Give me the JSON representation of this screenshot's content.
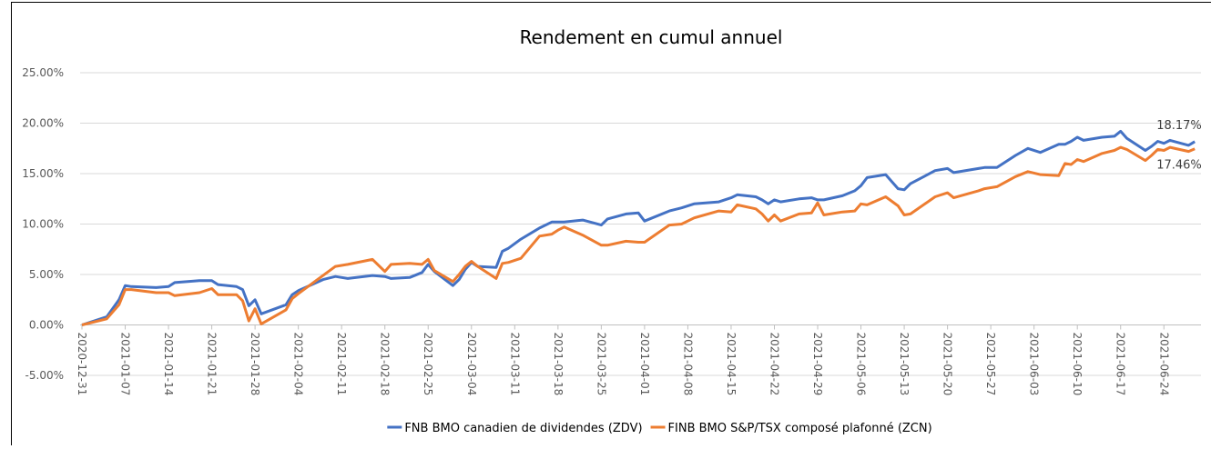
{
  "chart_data": {
    "type": "line",
    "title": "Rendement en cumul annuel",
    "x": [
      "2020-12-31",
      "2021-01-04",
      "2021-01-06",
      "2021-01-07",
      "2021-01-08",
      "2021-01-12",
      "2021-01-14",
      "2021-01-15",
      "2021-01-19",
      "2021-01-21",
      "2021-01-22",
      "2021-01-25",
      "2021-01-26",
      "2021-01-27",
      "2021-01-28",
      "2021-01-29",
      "2021-02-02",
      "2021-02-03",
      "2021-02-04",
      "2021-02-08",
      "2021-02-10",
      "2021-02-12",
      "2021-02-16",
      "2021-02-18",
      "2021-02-19",
      "2021-02-22",
      "2021-02-24",
      "2021-02-25",
      "2021-02-26",
      "2021-03-01",
      "2021-03-02",
      "2021-03-03",
      "2021-03-04",
      "2021-03-05",
      "2021-03-08",
      "2021-03-09",
      "2021-03-10",
      "2021-03-12",
      "2021-03-15",
      "2021-03-17",
      "2021-03-18",
      "2021-03-19",
      "2021-03-22",
      "2021-03-25",
      "2021-03-26",
      "2021-03-29",
      "2021-03-31",
      "2021-04-01",
      "2021-04-05",
      "2021-04-07",
      "2021-04-09",
      "2021-04-13",
      "2021-04-15",
      "2021-04-16",
      "2021-04-19",
      "2021-04-20",
      "2021-04-21",
      "2021-04-22",
      "2021-04-23",
      "2021-04-26",
      "2021-04-28",
      "2021-04-29",
      "2021-04-30",
      "2021-05-03",
      "2021-05-05",
      "2021-05-06",
      "2021-05-07",
      "2021-05-10",
      "2021-05-12",
      "2021-05-13",
      "2021-05-14",
      "2021-05-18",
      "2021-05-20",
      "2021-05-21",
      "2021-05-25",
      "2021-05-26",
      "2021-05-28",
      "2021-05-31",
      "2021-06-02",
      "2021-06-04",
      "2021-06-07",
      "2021-06-08",
      "2021-06-09",
      "2021-06-10",
      "2021-06-11",
      "2021-06-14",
      "2021-06-16",
      "2021-06-17",
      "2021-06-18",
      "2021-06-21",
      "2021-06-22",
      "2021-06-23",
      "2021-06-24",
      "2021-06-25",
      "2021-06-28",
      "2021-06-29"
    ],
    "series": [
      {
        "name": "FNB BMO canadien de dividendes (ZDV)",
        "color": "#4472c4",
        "values": [
          0,
          0.8,
          2.5,
          3.9,
          3.8,
          3.7,
          3.8,
          4.2,
          4.4,
          4.4,
          4.0,
          3.8,
          3.5,
          1.9,
          2.5,
          1.1,
          2.0,
          3.0,
          3.4,
          4.5,
          4.8,
          4.6,
          4.9,
          4.8,
          4.6,
          4.7,
          5.2,
          6.0,
          5.3,
          3.9,
          4.5,
          5.5,
          6.2,
          5.8,
          5.7,
          7.3,
          7.6,
          8.5,
          9.6,
          10.2,
          10.2,
          10.2,
          10.4,
          9.9,
          10.5,
          11.0,
          11.1,
          10.3,
          11.3,
          11.6,
          12.0,
          12.2,
          12.6,
          12.9,
          12.7,
          12.4,
          12.0,
          12.4,
          12.2,
          12.5,
          12.6,
          12.4,
          12.4,
          12.8,
          13.3,
          13.8,
          14.6,
          14.9,
          13.5,
          13.4,
          14.0,
          15.3,
          15.5,
          15.1,
          15.5,
          15.6,
          15.6,
          16.8,
          17.5,
          17.1,
          17.9,
          17.9,
          18.2,
          18.6,
          18.3,
          18.6,
          18.7,
          19.2,
          18.5,
          17.3,
          17.7,
          18.2,
          18.0,
          18.3,
          17.8,
          18.17
        ],
        "value_labels": [
          null,
          null,
          null,
          null,
          null,
          null,
          null,
          null,
          null,
          null,
          null,
          null,
          null,
          null,
          null,
          null,
          null,
          null,
          null,
          null,
          null,
          null,
          null,
          null,
          null,
          null,
          null,
          null,
          null,
          null,
          null,
          null,
          null,
          null,
          null,
          null,
          null,
          null,
          null,
          null,
          null,
          null,
          null,
          null,
          null,
          null,
          null,
          null,
          null,
          null,
          null,
          null,
          null,
          null,
          null,
          null,
          null,
          null,
          null,
          null,
          null,
          null,
          null,
          null,
          null,
          null,
          null,
          null,
          null,
          null,
          null,
          null,
          null,
          null,
          null,
          null,
          null,
          null,
          null,
          null,
          null,
          null,
          null,
          null,
          null,
          null,
          null,
          null,
          null,
          null,
          null,
          null,
          null,
          null,
          null,
          "18.17%"
        ]
      },
      {
        "name": "FINB BMO S&P/TSX composé plafonné (ZCN)",
        "color": "#ed7d31",
        "values": [
          0,
          0.6,
          2.0,
          3.5,
          3.5,
          3.2,
          3.2,
          2.9,
          3.2,
          3.6,
          3.0,
          3.0,
          2.4,
          0.4,
          1.6,
          0.1,
          1.5,
          2.6,
          3.1,
          4.9,
          5.8,
          6.0,
          6.5,
          5.3,
          6.0,
          6.1,
          6.0,
          6.5,
          5.4,
          4.3,
          5.0,
          5.8,
          6.3,
          5.8,
          4.6,
          6.1,
          6.2,
          6.6,
          8.8,
          9.0,
          9.4,
          9.7,
          8.9,
          7.9,
          7.9,
          8.3,
          8.2,
          8.2,
          9.9,
          10.0,
          10.6,
          11.3,
          11.2,
          11.9,
          11.5,
          11.0,
          10.3,
          10.9,
          10.3,
          11.0,
          11.1,
          12.1,
          10.9,
          11.2,
          11.3,
          12.0,
          11.9,
          12.7,
          11.8,
          10.9,
          11.0,
          12.7,
          13.1,
          12.6,
          13.3,
          13.5,
          13.7,
          14.7,
          15.2,
          14.9,
          14.8,
          16.0,
          15.9,
          16.4,
          16.2,
          17.0,
          17.3,
          17.6,
          17.4,
          16.3,
          16.8,
          17.4,
          17.3,
          17.6,
          17.2,
          17.46
        ],
        "value_labels": [
          null,
          null,
          null,
          null,
          null,
          null,
          null,
          null,
          null,
          null,
          null,
          null,
          null,
          null,
          null,
          null,
          null,
          null,
          null,
          null,
          null,
          null,
          null,
          null,
          null,
          null,
          null,
          null,
          null,
          null,
          null,
          null,
          null,
          null,
          null,
          null,
          null,
          null,
          null,
          null,
          null,
          null,
          null,
          null,
          null,
          null,
          null,
          null,
          null,
          null,
          null,
          null,
          null,
          null,
          null,
          null,
          null,
          null,
          null,
          null,
          null,
          null,
          null,
          null,
          null,
          null,
          null,
          null,
          null,
          null,
          null,
          null,
          null,
          null,
          null,
          null,
          null,
          null,
          null,
          null,
          null,
          null,
          null,
          null,
          null,
          null,
          null,
          null,
          null,
          null,
          null,
          null,
          null,
          null,
          null,
          "17.46%"
        ]
      }
    ],
    "xlim": [
      "2020-12-31",
      "2021-06-30"
    ],
    "xticks": [
      "2020-12-31",
      "2021-01-07",
      "2021-01-14",
      "2021-01-21",
      "2021-01-28",
      "2021-02-04",
      "2021-02-11",
      "2021-02-18",
      "2021-02-25",
      "2021-03-04",
      "2021-03-11",
      "2021-03-18",
      "2021-03-25",
      "2021-04-01",
      "2021-04-08",
      "2021-04-15",
      "2021-04-22",
      "2021-04-29",
      "2021-05-06",
      "2021-05-13",
      "2021-05-20",
      "2021-05-27",
      "2021-06-03",
      "2021-06-10",
      "2021-06-17",
      "2021-06-24"
    ],
    "ylim": [
      -5,
      25
    ],
    "yticks": [
      {
        "value": -5,
        "label": "-5.00%"
      },
      {
        "value": 0,
        "label": "0.00%"
      },
      {
        "value": 5,
        "label": "5.00%"
      },
      {
        "value": 10,
        "label": "10.00%"
      },
      {
        "value": 15,
        "label": "15.00%"
      },
      {
        "value": 20,
        "label": "20.00%"
      },
      {
        "value": 25,
        "label": "25.00%"
      }
    ],
    "grid": true,
    "legend": "bottom"
  }
}
